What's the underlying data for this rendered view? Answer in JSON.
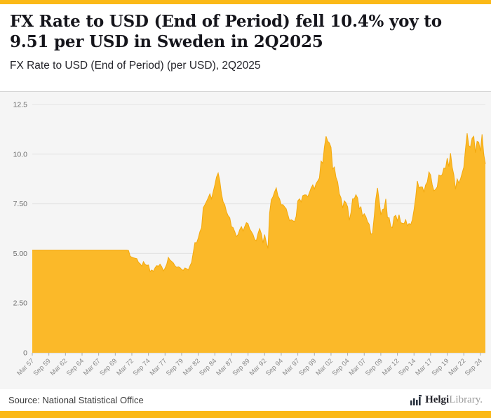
{
  "page": {
    "title": "FX Rate to USD (End of Period) fell 10.4% yoy to 9.51 per USD in Sweden in 2Q2025",
    "subtitle": "FX Rate to USD (End of Period) (per USD), 2Q2025",
    "source": "Source: National Statistical Office",
    "brand": {
      "bold": "Helgi",
      "light": "Library",
      "suffix": "."
    }
  },
  "colors": {
    "accent": "#FBB917",
    "area_fill": "#FBB929",
    "area_stroke": "#F3A90E",
    "chart_bg": "#f5f5f5",
    "grid": "#e2e2e2",
    "baseline": "#c9c9c9",
    "tick_text": "#8b8b8b",
    "ytick_text": "#6e6e6e"
  },
  "chart_data": {
    "type": "area",
    "title": "FX Rate to USD (End of Period) (per USD), 2Q2025",
    "xlabel": "",
    "ylabel": "per USD",
    "ylim": [
      0,
      12.5
    ],
    "yticks": [
      0,
      2.5,
      5,
      7.5,
      10,
      12.5
    ],
    "ytick_labels": [
      "0",
      "2.50",
      "5.00",
      "7.50",
      "10.0",
      "12.5"
    ],
    "x_tick_every": 10,
    "x_tick_labels": [
      "Mar 57",
      "Sep 59",
      "Mar 62",
      "Sep 64",
      "Mar 67",
      "Sep 69",
      "Mar 72",
      "Sep 74",
      "Mar 77",
      "Sep 79",
      "Mar 82",
      "Sep 84",
      "Mar 87",
      "Sep 89",
      "Mar 92",
      "Sep 94",
      "Mar 97",
      "Sep 99",
      "Mar 02",
      "Sep 04",
      "Mar 07",
      "Sep 09",
      "Mar 12",
      "Sep 14",
      "Mar 17",
      "Sep 19",
      "Mar 22",
      "Sep 24"
    ],
    "frequency": "quarterly",
    "start": "Mar 1957",
    "end": "Jun 2025",
    "last_value": 9.51,
    "values": [
      5.17,
      5.17,
      5.17,
      5.17,
      5.17,
      5.17,
      5.17,
      5.17,
      5.17,
      5.17,
      5.17,
      5.17,
      5.17,
      5.17,
      5.17,
      5.17,
      5.17,
      5.17,
      5.17,
      5.17,
      5.17,
      5.17,
      5.17,
      5.17,
      5.17,
      5.17,
      5.17,
      5.17,
      5.17,
      5.17,
      5.17,
      5.17,
      5.17,
      5.17,
      5.17,
      5.17,
      5.17,
      5.17,
      5.17,
      5.17,
      5.17,
      5.17,
      5.17,
      5.17,
      5.17,
      5.17,
      5.17,
      5.17,
      5.17,
      5.17,
      5.17,
      5.17,
      5.17,
      5.17,
      5.17,
      5.17,
      5.17,
      5.17,
      5.15,
      4.86,
      4.81,
      4.78,
      4.76,
      4.74,
      4.55,
      4.48,
      4.36,
      4.59,
      4.45,
      4.4,
      4.42,
      4.09,
      4.17,
      4.1,
      4.28,
      4.39,
      4.36,
      4.46,
      4.33,
      4.12,
      4.26,
      4.45,
      4.8,
      4.67,
      4.6,
      4.52,
      4.38,
      4.3,
      4.33,
      4.29,
      4.19,
      4.15,
      4.27,
      4.23,
      4.17,
      4.37,
      4.55,
      5.05,
      5.55,
      5.53,
      5.77,
      6.1,
      6.29,
      7.3,
      7.45,
      7.62,
      7.8,
      8.0,
      7.75,
      8.1,
      8.45,
      8.85,
      9.05,
      8.65,
      8.0,
      7.6,
      7.45,
      7.1,
      6.9,
      6.8,
      6.35,
      6.3,
      6.1,
      5.85,
      5.95,
      6.2,
      6.35,
      6.13,
      6.35,
      6.55,
      6.5,
      6.23,
      6.1,
      5.95,
      5.7,
      5.64,
      6.0,
      6.25,
      6.0,
      5.53,
      5.95,
      5.55,
      5.25,
      7.04,
      7.7,
      7.85,
      8.1,
      8.3,
      7.9,
      7.75,
      7.45,
      7.46,
      7.35,
      7.25,
      6.95,
      6.65,
      6.7,
      6.65,
      6.6,
      6.87,
      7.65,
      7.75,
      7.6,
      7.91,
      7.95,
      7.95,
      7.85,
      8.06,
      8.3,
      8.45,
      8.25,
      8.52,
      8.65,
      8.8,
      9.65,
      9.54,
      10.35,
      10.9,
      10.65,
      10.56,
      10.34,
      9.25,
      9.35,
      8.83,
      8.6,
      8.0,
      7.8,
      7.28,
      7.65,
      7.55,
      7.35,
      6.67,
      7.05,
      7.75,
      7.75,
      7.96,
      7.8,
      7.25,
      7.35,
      6.87,
      7.0,
      6.85,
      6.6,
      6.47,
      5.97,
      6.02,
      6.85,
      7.75,
      8.3,
      7.65,
      6.95,
      7.21,
      7.25,
      7.75,
      6.8,
      6.8,
      6.35,
      6.3,
      6.85,
      6.92,
      6.65,
      6.95,
      6.55,
      6.52,
      6.5,
      6.7,
      6.4,
      6.51,
      6.45,
      6.7,
      7.2,
      7.81,
      8.65,
      8.3,
      8.35,
      8.35,
      8.1,
      8.45,
      8.6,
      9.1,
      8.95,
      8.45,
      8.15,
      8.23,
      8.35,
      8.95,
      8.9,
      8.97,
      9.3,
      9.28,
      9.8,
      9.37,
      10.05,
      9.35,
      8.95,
      8.23,
      8.75,
      8.55,
      8.75,
      9.05,
      9.35,
      10.25,
      11.05,
      10.43,
      10.35,
      10.8,
      10.9,
      10.07,
      10.65,
      10.6,
      10.15,
      11.0,
      10.0,
      9.51
    ]
  }
}
